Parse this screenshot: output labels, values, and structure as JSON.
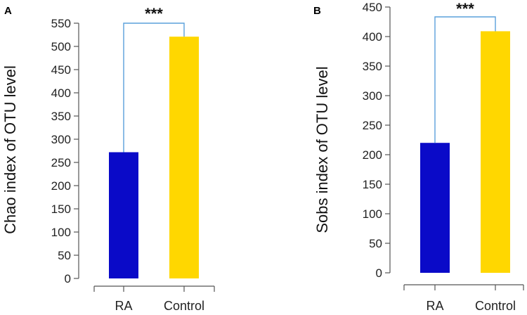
{
  "chart_data": [
    {
      "type": "bar",
      "panel_label": "A",
      "categories": [
        "RA",
        "Control"
      ],
      "values": [
        272,
        521
      ],
      "bar_colors": [
        "#0a0ac8",
        "#ffd700"
      ],
      "ylabel": "Chao index of OTU level",
      "xlabel": "",
      "ylim": [
        0,
        550
      ],
      "yticks": [
        0,
        50,
        100,
        150,
        200,
        250,
        300,
        350,
        400,
        450,
        500,
        550
      ],
      "significance": "***",
      "significance_color": "#5aa0dc"
    },
    {
      "type": "bar",
      "panel_label": "B",
      "categories": [
        "RA",
        "Control"
      ],
      "values": [
        220,
        409
      ],
      "bar_colors": [
        "#0a0ac8",
        "#ffd700"
      ],
      "ylabel": "Sobs index of OTU level",
      "xlabel": "",
      "ylim": [
        0,
        450
      ],
      "yticks": [
        0,
        50,
        100,
        150,
        200,
        250,
        300,
        350,
        400,
        450
      ],
      "significance": "***",
      "significance_color": "#5aa0dc"
    }
  ]
}
